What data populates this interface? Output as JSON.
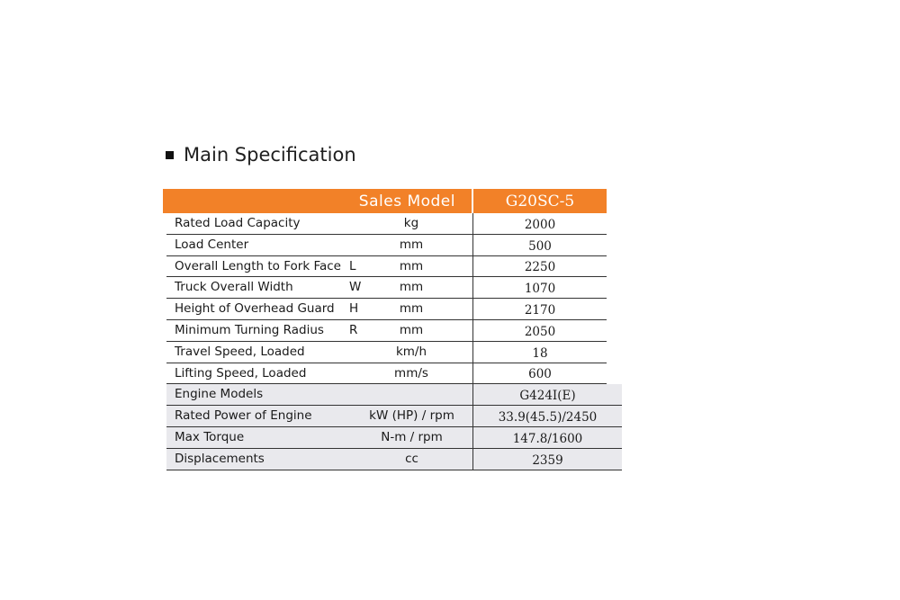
{
  "heading": "Main Specification",
  "table": {
    "header_label": "Sales Model",
    "model": "G20SC-5",
    "rows": [
      {
        "label": "Rated Load Capacity",
        "symbol": "",
        "unit": "kg",
        "value": "2000"
      },
      {
        "label": "Load Center",
        "symbol": "",
        "unit": "mm",
        "value": "500"
      },
      {
        "label": "Overall Length to Fork Face",
        "symbol": "L",
        "unit": "mm",
        "value": "2250"
      },
      {
        "label": "Truck Overall Width",
        "symbol": "W",
        "unit": "mm",
        "value": "1070"
      },
      {
        "label": "Height of Overhead Guard",
        "symbol": "H",
        "unit": "mm",
        "value": "2170"
      },
      {
        "label": "Minimum Turning Radius",
        "symbol": "R",
        "unit": "mm",
        "value": "2050"
      },
      {
        "label": "Travel Speed, Loaded",
        "symbol": "",
        "unit": "km/h",
        "value": "18"
      },
      {
        "label": "Lifting Speed, Loaded",
        "symbol": "",
        "unit": "mm/s",
        "value": "600"
      }
    ],
    "engine_rows": [
      {
        "label": "Engine Models",
        "unit": "",
        "value": "G424I(E)"
      },
      {
        "label": "Rated Power of Engine",
        "unit": "kW (HP) / rpm",
        "value": "33.9(45.5)/2450"
      },
      {
        "label": "Max Torque",
        "unit": "N-m / rpm",
        "value": "147.8/1600"
      },
      {
        "label": "Displacements",
        "unit": "cc",
        "value": "2359"
      }
    ]
  },
  "colors": {
    "accent": "#f28128",
    "shade": "#e9e9ed"
  }
}
